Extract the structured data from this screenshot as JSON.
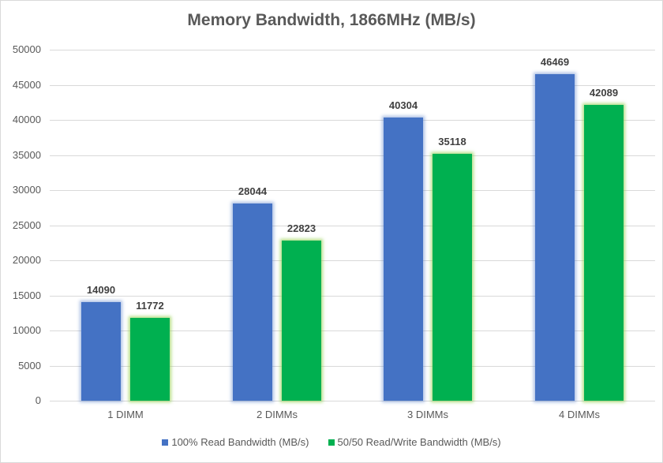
{
  "chart_data": {
    "type": "bar",
    "title": "Memory Bandwidth, 1866MHz (MB/s)",
    "xlabel": "",
    "ylabel": "",
    "categories": [
      "1 DIMM",
      "2 DIMMs",
      "3 DIMMs",
      "4 DIMMs"
    ],
    "series": [
      {
        "name": "100% Read Bandwidth (MB/s)",
        "color": "#4472c4",
        "values": [
          14090,
          28044,
          40304,
          46469
        ]
      },
      {
        "name": "50/50 Read/Write Bandwidth (MB/s)",
        "color": "#00b050",
        "values": [
          11772,
          22823,
          35118,
          42089
        ]
      }
    ],
    "ylim": [
      0,
      50000
    ],
    "yticks": [
      "0",
      "5000",
      "10000",
      "15000",
      "20000",
      "25000",
      "30000",
      "35000",
      "40000",
      "45000",
      "50000"
    ],
    "grid": true,
    "legend_position": "bottom",
    "data_labels": true
  }
}
